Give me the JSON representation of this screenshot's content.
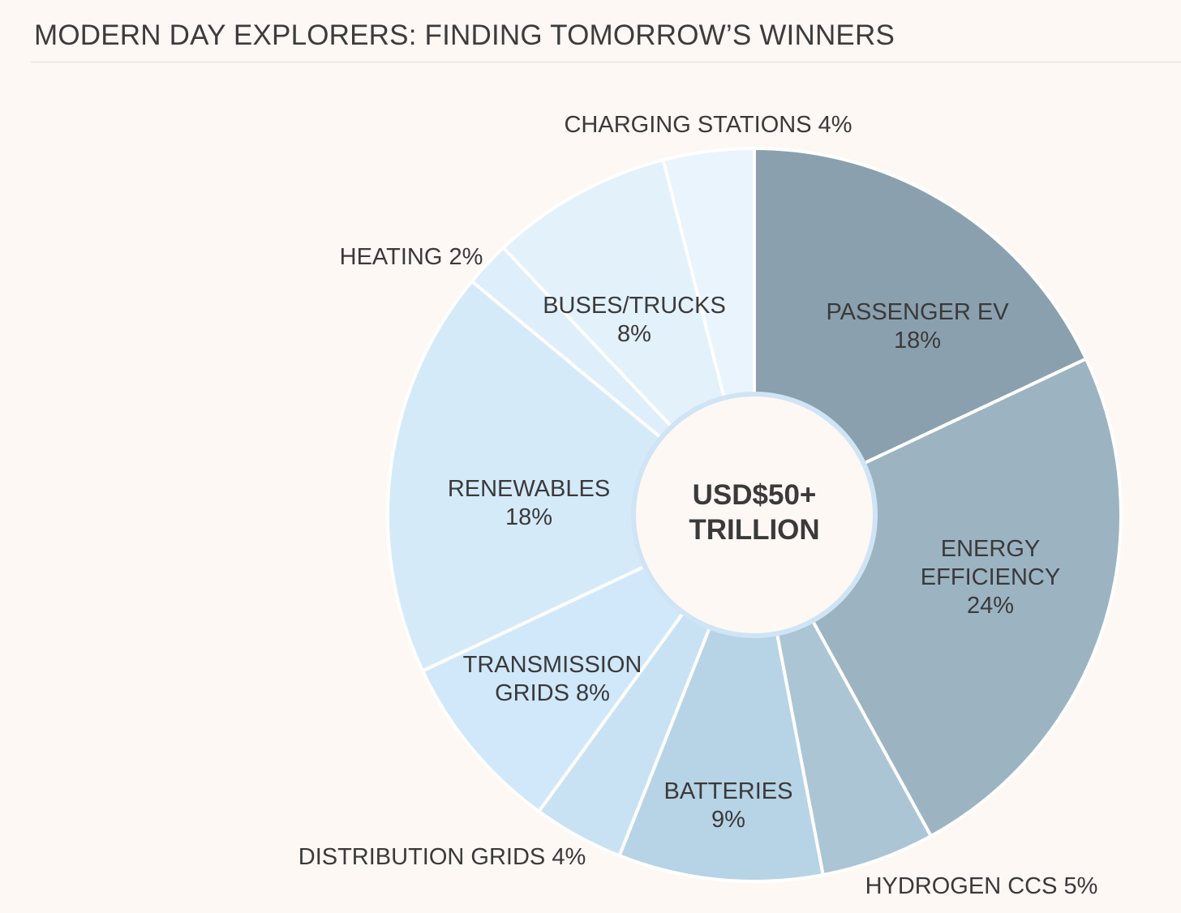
{
  "title": "MODERN DAY EXPLORERS: FINDING TOMORROW’S WINNERS",
  "chart_data": {
    "type": "pie",
    "center_label": [
      "USD$50+",
      "TRILLION"
    ],
    "slices": [
      {
        "label": [
          "PASSENGER EV",
          "18%"
        ],
        "value": 18,
        "color": "#8aa0ae"
      },
      {
        "label": [
          "ENERGY",
          "EFFICIENCY",
          "24%"
        ],
        "value": 24,
        "color": "#9cb3c2"
      },
      {
        "label": [
          "HYDROGEN CCS 5%"
        ],
        "value": 5,
        "color": "#abc5d5"
      },
      {
        "label": [
          "BATTERIES",
          "9%"
        ],
        "value": 9,
        "color": "#b7d3e6"
      },
      {
        "label": [
          "DISTRIBUTION GRIDS 4%"
        ],
        "value": 4,
        "color": "#c8e2f3"
      },
      {
        "label": [
          "TRANSMISSION",
          "GRIDS 8%"
        ],
        "value": 8,
        "color": "#d0e8f9"
      },
      {
        "label": [
          "RENEWABLES",
          "18%"
        ],
        "value": 18,
        "color": "#d5eaf9"
      },
      {
        "label": [
          "HEATING 2%"
        ],
        "value": 2,
        "color": "#deeefa"
      },
      {
        "label": [
          "BUSES/TRUCKS",
          "8%"
        ],
        "value": 8,
        "color": "#e3f1fb"
      },
      {
        "label": [
          "CHARGING STATIONS 4%"
        ],
        "value": 4,
        "color": "#e9f4fc"
      }
    ]
  }
}
